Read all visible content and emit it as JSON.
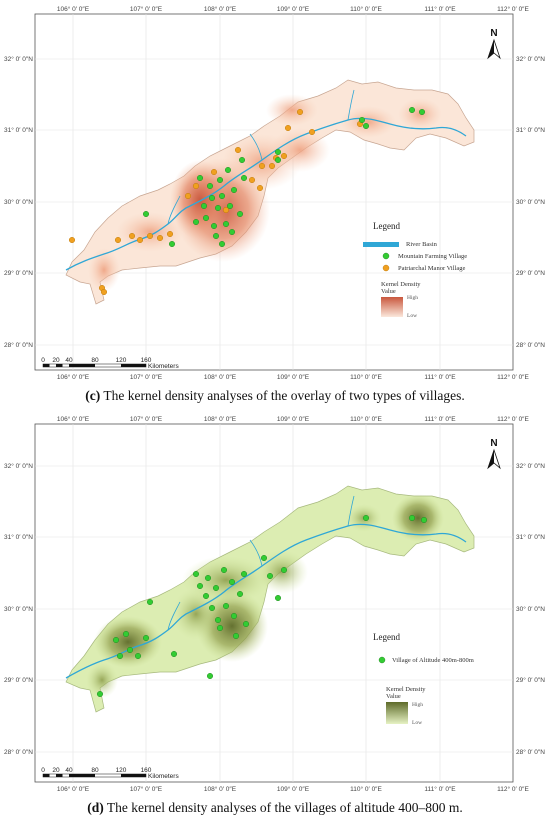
{
  "panel_c": {
    "caption_letter": "(c)",
    "caption_text": " The kernel density analyses of the overlay of two types of villages.",
    "lon_labels": [
      "106° 0′ 0″E",
      "107° 0′ 0″E",
      "108° 0′ 0″E",
      "109° 0′ 0″E",
      "110° 0′ 0″E",
      "111° 0′ 0″E",
      "112° 0′ 0″E"
    ],
    "lat_labels": [
      "32° 0′ 0″N",
      "31° 0′ 0″N",
      "30° 0′ 0″N",
      "29° 0′ 0″N",
      "28° 0′ 0″N"
    ],
    "legend": {
      "title": "Legend",
      "river": "River Basin",
      "mountain": "Mountain Farming Village",
      "manor": "Patriarchal Manor Village",
      "kd_title_1": "Kernel Density",
      "kd_title_2": "Value",
      "high": "High",
      "low": "Low"
    },
    "colors": {
      "high": "#c9573d",
      "low": "#fbe8dc",
      "river": "#2fa7d6",
      "mountain": "#33cc33",
      "manor": "#f0a020"
    }
  },
  "panel_d": {
    "caption_letter": "(d)",
    "caption_text": " The kernel density analyses of the villages of altitude 400–800 m.",
    "lon_labels": [
      "106° 0′ 0″E",
      "107° 0′ 0″E",
      "108° 0′ 0″E",
      "109° 0′ 0″E",
      "110° 0′ 0″E",
      "111° 0′ 0″E",
      "112° 0′ 0″E"
    ],
    "lat_labels": [
      "32° 0′ 0″N",
      "31° 0′ 0″N",
      "30° 0′ 0″N",
      "29° 0′ 0″N",
      "28° 0′ 0″N"
    ],
    "legend": {
      "title": "Legend",
      "village": "Village of Altitude 400m-800m",
      "kd_title_1": "Kernel Density",
      "kd_title_2": "Value",
      "high": "High",
      "low": "Low"
    },
    "colors": {
      "high": "#5e6b2a",
      "low": "#e6f2c4",
      "village": "#33cc33"
    }
  },
  "north_label": "N",
  "scale": {
    "ticks": [
      "0",
      "20",
      "40",
      "80",
      "120",
      "160"
    ],
    "unit": "Kilometers"
  }
}
